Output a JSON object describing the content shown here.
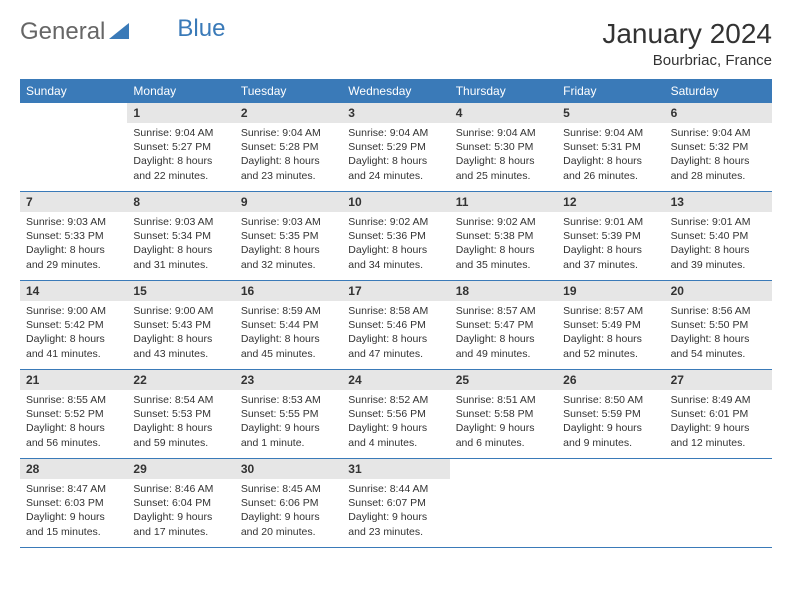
{
  "logo": {
    "general": "General",
    "blue": "Blue"
  },
  "title": "January 2024",
  "subtitle": "Bourbriac, France",
  "colors": {
    "header_bg": "#3a7ab8",
    "header_text": "#ffffff",
    "daynum_bg": "#e6e6e6",
    "border": "#3a7ab8",
    "text": "#333333"
  },
  "dow": [
    "Sunday",
    "Monday",
    "Tuesday",
    "Wednesday",
    "Thursday",
    "Friday",
    "Saturday"
  ],
  "weeks": [
    [
      null,
      {
        "n": "1",
        "sr": "Sunrise: 9:04 AM",
        "ss": "Sunset: 5:27 PM",
        "d1": "Daylight: 8 hours",
        "d2": "and 22 minutes."
      },
      {
        "n": "2",
        "sr": "Sunrise: 9:04 AM",
        "ss": "Sunset: 5:28 PM",
        "d1": "Daylight: 8 hours",
        "d2": "and 23 minutes."
      },
      {
        "n": "3",
        "sr": "Sunrise: 9:04 AM",
        "ss": "Sunset: 5:29 PM",
        "d1": "Daylight: 8 hours",
        "d2": "and 24 minutes."
      },
      {
        "n": "4",
        "sr": "Sunrise: 9:04 AM",
        "ss": "Sunset: 5:30 PM",
        "d1": "Daylight: 8 hours",
        "d2": "and 25 minutes."
      },
      {
        "n": "5",
        "sr": "Sunrise: 9:04 AM",
        "ss": "Sunset: 5:31 PM",
        "d1": "Daylight: 8 hours",
        "d2": "and 26 minutes."
      },
      {
        "n": "6",
        "sr": "Sunrise: 9:04 AM",
        "ss": "Sunset: 5:32 PM",
        "d1": "Daylight: 8 hours",
        "d2": "and 28 minutes."
      }
    ],
    [
      {
        "n": "7",
        "sr": "Sunrise: 9:03 AM",
        "ss": "Sunset: 5:33 PM",
        "d1": "Daylight: 8 hours",
        "d2": "and 29 minutes."
      },
      {
        "n": "8",
        "sr": "Sunrise: 9:03 AM",
        "ss": "Sunset: 5:34 PM",
        "d1": "Daylight: 8 hours",
        "d2": "and 31 minutes."
      },
      {
        "n": "9",
        "sr": "Sunrise: 9:03 AM",
        "ss": "Sunset: 5:35 PM",
        "d1": "Daylight: 8 hours",
        "d2": "and 32 minutes."
      },
      {
        "n": "10",
        "sr": "Sunrise: 9:02 AM",
        "ss": "Sunset: 5:36 PM",
        "d1": "Daylight: 8 hours",
        "d2": "and 34 minutes."
      },
      {
        "n": "11",
        "sr": "Sunrise: 9:02 AM",
        "ss": "Sunset: 5:38 PM",
        "d1": "Daylight: 8 hours",
        "d2": "and 35 minutes."
      },
      {
        "n": "12",
        "sr": "Sunrise: 9:01 AM",
        "ss": "Sunset: 5:39 PM",
        "d1": "Daylight: 8 hours",
        "d2": "and 37 minutes."
      },
      {
        "n": "13",
        "sr": "Sunrise: 9:01 AM",
        "ss": "Sunset: 5:40 PM",
        "d1": "Daylight: 8 hours",
        "d2": "and 39 minutes."
      }
    ],
    [
      {
        "n": "14",
        "sr": "Sunrise: 9:00 AM",
        "ss": "Sunset: 5:42 PM",
        "d1": "Daylight: 8 hours",
        "d2": "and 41 minutes."
      },
      {
        "n": "15",
        "sr": "Sunrise: 9:00 AM",
        "ss": "Sunset: 5:43 PM",
        "d1": "Daylight: 8 hours",
        "d2": "and 43 minutes."
      },
      {
        "n": "16",
        "sr": "Sunrise: 8:59 AM",
        "ss": "Sunset: 5:44 PM",
        "d1": "Daylight: 8 hours",
        "d2": "and 45 minutes."
      },
      {
        "n": "17",
        "sr": "Sunrise: 8:58 AM",
        "ss": "Sunset: 5:46 PM",
        "d1": "Daylight: 8 hours",
        "d2": "and 47 minutes."
      },
      {
        "n": "18",
        "sr": "Sunrise: 8:57 AM",
        "ss": "Sunset: 5:47 PM",
        "d1": "Daylight: 8 hours",
        "d2": "and 49 minutes."
      },
      {
        "n": "19",
        "sr": "Sunrise: 8:57 AM",
        "ss": "Sunset: 5:49 PM",
        "d1": "Daylight: 8 hours",
        "d2": "and 52 minutes."
      },
      {
        "n": "20",
        "sr": "Sunrise: 8:56 AM",
        "ss": "Sunset: 5:50 PM",
        "d1": "Daylight: 8 hours",
        "d2": "and 54 minutes."
      }
    ],
    [
      {
        "n": "21",
        "sr": "Sunrise: 8:55 AM",
        "ss": "Sunset: 5:52 PM",
        "d1": "Daylight: 8 hours",
        "d2": "and 56 minutes."
      },
      {
        "n": "22",
        "sr": "Sunrise: 8:54 AM",
        "ss": "Sunset: 5:53 PM",
        "d1": "Daylight: 8 hours",
        "d2": "and 59 minutes."
      },
      {
        "n": "23",
        "sr": "Sunrise: 8:53 AM",
        "ss": "Sunset: 5:55 PM",
        "d1": "Daylight: 9 hours",
        "d2": "and 1 minute."
      },
      {
        "n": "24",
        "sr": "Sunrise: 8:52 AM",
        "ss": "Sunset: 5:56 PM",
        "d1": "Daylight: 9 hours",
        "d2": "and 4 minutes."
      },
      {
        "n": "25",
        "sr": "Sunrise: 8:51 AM",
        "ss": "Sunset: 5:58 PM",
        "d1": "Daylight: 9 hours",
        "d2": "and 6 minutes."
      },
      {
        "n": "26",
        "sr": "Sunrise: 8:50 AM",
        "ss": "Sunset: 5:59 PM",
        "d1": "Daylight: 9 hours",
        "d2": "and 9 minutes."
      },
      {
        "n": "27",
        "sr": "Sunrise: 8:49 AM",
        "ss": "Sunset: 6:01 PM",
        "d1": "Daylight: 9 hours",
        "d2": "and 12 minutes."
      }
    ],
    [
      {
        "n": "28",
        "sr": "Sunrise: 8:47 AM",
        "ss": "Sunset: 6:03 PM",
        "d1": "Daylight: 9 hours",
        "d2": "and 15 minutes."
      },
      {
        "n": "29",
        "sr": "Sunrise: 8:46 AM",
        "ss": "Sunset: 6:04 PM",
        "d1": "Daylight: 9 hours",
        "d2": "and 17 minutes."
      },
      {
        "n": "30",
        "sr": "Sunrise: 8:45 AM",
        "ss": "Sunset: 6:06 PM",
        "d1": "Daylight: 9 hours",
        "d2": "and 20 minutes."
      },
      {
        "n": "31",
        "sr": "Sunrise: 8:44 AM",
        "ss": "Sunset: 6:07 PM",
        "d1": "Daylight: 9 hours",
        "d2": "and 23 minutes."
      },
      null,
      null,
      null
    ]
  ]
}
